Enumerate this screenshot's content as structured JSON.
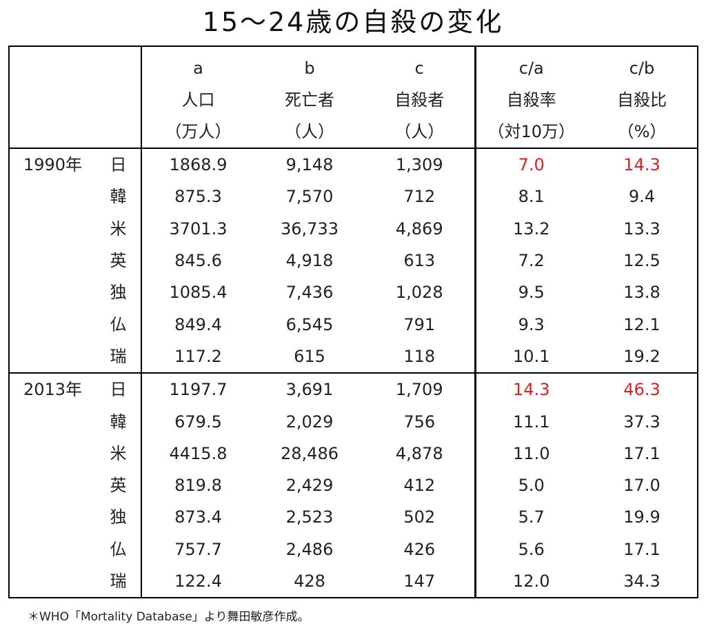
{
  "title": "15～24歳の自殺の変化",
  "header": {
    "letters": [
      "a",
      "b",
      "c",
      "c/a",
      "c/b"
    ],
    "names": [
      "人口",
      "死亡者",
      "自殺者",
      "自殺率",
      "自殺比"
    ],
    "units": [
      "（万人）",
      "（人）",
      "（人）",
      "（対10万）",
      "（%）"
    ]
  },
  "groups": [
    {
      "year": "1990年",
      "rows": [
        {
          "country": "日",
          "a": "1868.9",
          "b": "9,148",
          "c": "1,309",
          "ca": "7.0",
          "cb": "14.3",
          "highlight": true
        },
        {
          "country": "韓",
          "a": "875.3",
          "b": "7,570",
          "c": "712",
          "ca": "8.1",
          "cb": "9.4",
          "highlight": false
        },
        {
          "country": "米",
          "a": "3701.3",
          "b": "36,733",
          "c": "4,869",
          "ca": "13.2",
          "cb": "13.3",
          "highlight": false
        },
        {
          "country": "英",
          "a": "845.6",
          "b": "4,918",
          "c": "613",
          "ca": "7.2",
          "cb": "12.5",
          "highlight": false
        },
        {
          "country": "独",
          "a": "1085.4",
          "b": "7,436",
          "c": "1,028",
          "ca": "9.5",
          "cb": "13.8",
          "highlight": false
        },
        {
          "country": "仏",
          "a": "849.4",
          "b": "6,545",
          "c": "791",
          "ca": "9.3",
          "cb": "12.1",
          "highlight": false
        },
        {
          "country": "瑞",
          "a": "117.2",
          "b": "615",
          "c": "118",
          "ca": "10.1",
          "cb": "19.2",
          "highlight": false
        }
      ]
    },
    {
      "year": "2013年",
      "rows": [
        {
          "country": "日",
          "a": "1197.7",
          "b": "3,691",
          "c": "1,709",
          "ca": "14.3",
          "cb": "46.3",
          "highlight": true
        },
        {
          "country": "韓",
          "a": "679.5",
          "b": "2,029",
          "c": "756",
          "ca": "11.1",
          "cb": "37.3",
          "highlight": false
        },
        {
          "country": "米",
          "a": "4415.8",
          "b": "28,486",
          "c": "4,878",
          "ca": "11.0",
          "cb": "17.1",
          "highlight": false
        },
        {
          "country": "英",
          "a": "819.8",
          "b": "2,429",
          "c": "412",
          "ca": "5.0",
          "cb": "17.0",
          "highlight": false
        },
        {
          "country": "独",
          "a": "873.4",
          "b": "2,523",
          "c": "502",
          "ca": "5.7",
          "cb": "19.9",
          "highlight": false
        },
        {
          "country": "仏",
          "a": "757.7",
          "b": "2,486",
          "c": "426",
          "ca": "5.6",
          "cb": "17.1",
          "highlight": false
        },
        {
          "country": "瑞",
          "a": "122.4",
          "b": "428",
          "c": "147",
          "ca": "12.0",
          "cb": "34.3",
          "highlight": false
        }
      ]
    }
  ],
  "colors": {
    "highlight": "#e02020",
    "border": "#000000",
    "text": "#222222"
  },
  "footnote": "＊WHO「Mortality Database」より舞田敏彦作成。"
}
